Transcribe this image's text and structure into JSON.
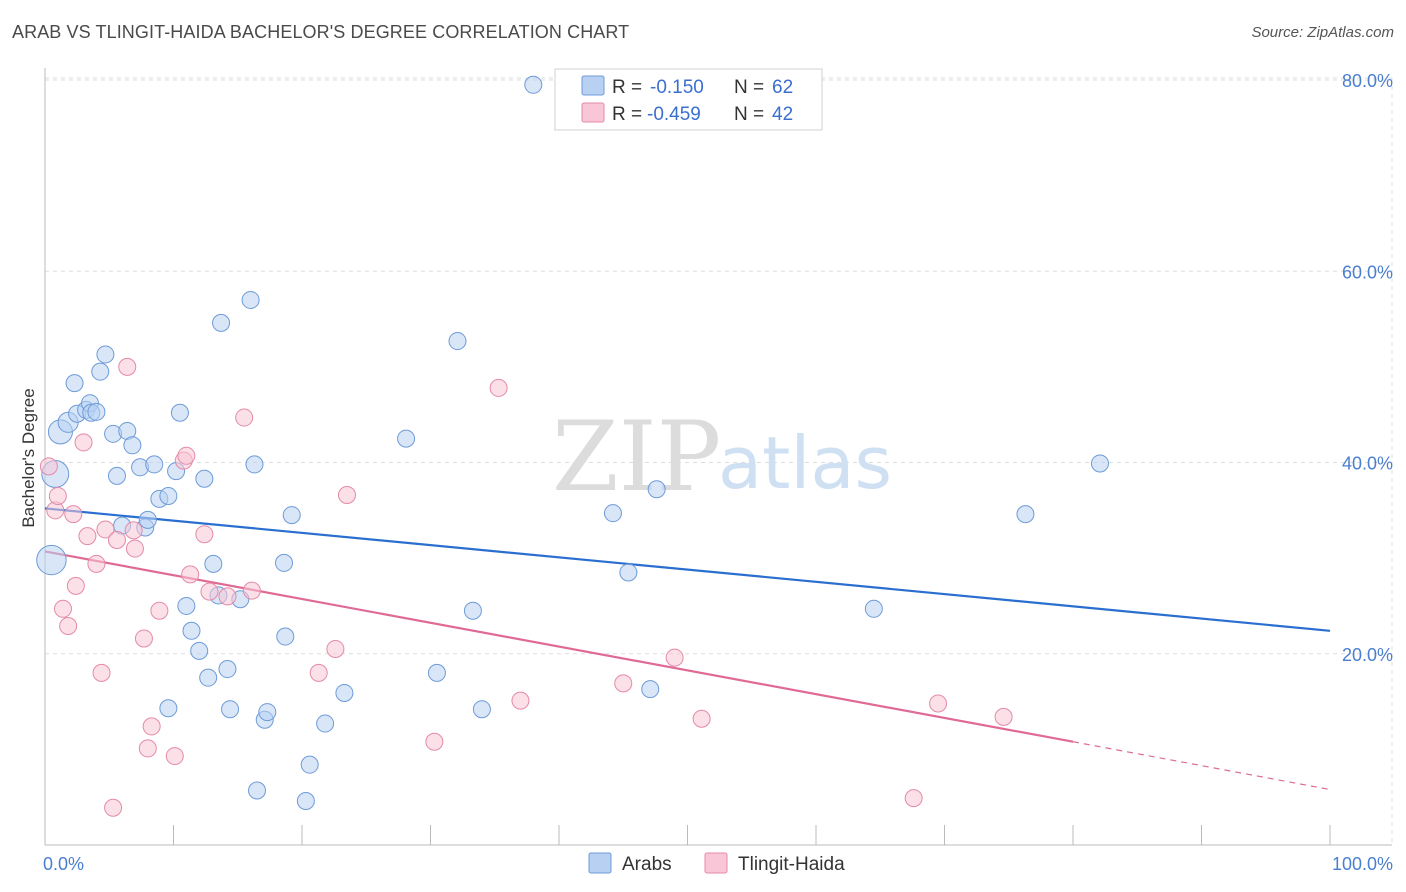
{
  "title": "ARAB VS TLINGIT-HAIDA BACHELOR'S DEGREE CORRELATION CHART",
  "source": "Source: ZipAtlas.com",
  "watermark": {
    "zip": "ZIP",
    "atlas": "atlas"
  },
  "colors": {
    "arabs_fill": "#b8d1f3",
    "arabs_stroke": "#6e9bd8",
    "arabs_line": "#2a6fd0",
    "tlingit_fill": "#f8c6d6",
    "tlingit_stroke": "#e58aa8",
    "tlingit_line": "#e06a96",
    "grid": "#dddddd",
    "tick_text": "#4a7fd0"
  },
  "legend": {
    "rows": [
      {
        "r_label": "R =",
        "r_value": "-0.150",
        "n_label": "N =",
        "n_value": "62"
      },
      {
        "r_label": "R =",
        "r_value": "-0.459",
        "n_label": "N =",
        "n_value": "42"
      }
    ]
  },
  "chart_data": {
    "type": "scatter",
    "title": "ARAB VS TLINGIT-HAIDA BACHELOR'S DEGREE CORRELATION CHART",
    "xlabel": "",
    "ylabel": "Bachelor's Degree",
    "xlim": [
      0,
      100
    ],
    "ylim": [
      0,
      80
    ],
    "x_tick_labels": [
      "0.0%",
      "100.0%"
    ],
    "y_ticks": [
      20,
      40,
      60,
      80
    ],
    "y_tick_labels": [
      "20.0%",
      "40.0%",
      "60.0%",
      "80.0%"
    ],
    "grid": true,
    "legend_position": "top-center",
    "series": [
      {
        "name": "Arabs",
        "color": "#b8d1f3",
        "trend": {
          "x": [
            0,
            100
          ],
          "y": [
            35.2,
            22.4
          ],
          "dashed_from": null
        },
        "points": [
          [
            0.5,
            29.8,
            3
          ],
          [
            0.8,
            38.8,
            2.5
          ],
          [
            1.2,
            43.2,
            2
          ],
          [
            1.8,
            44.2,
            1.4
          ],
          [
            2.3,
            48.3,
            1
          ],
          [
            2.5,
            45.1,
            1
          ],
          [
            3.2,
            45.5,
            1
          ],
          [
            3.5,
            46.2,
            1
          ],
          [
            3.6,
            45.2,
            1
          ],
          [
            4.3,
            49.5,
            1
          ],
          [
            4.7,
            51.3,
            1
          ],
          [
            5.3,
            43.0,
            1
          ],
          [
            5.6,
            38.6,
            1
          ],
          [
            6.0,
            33.4,
            1
          ],
          [
            6.4,
            43.3,
            1
          ],
          [
            6.8,
            41.8,
            1
          ],
          [
            7.4,
            39.5,
            1
          ],
          [
            7.8,
            33.2,
            1
          ],
          [
            8.0,
            34.0,
            1
          ],
          [
            8.5,
            39.8,
            1
          ],
          [
            8.9,
            36.2,
            1
          ],
          [
            9.6,
            36.5,
            1
          ],
          [
            10.2,
            39.1,
            1
          ],
          [
            10.5,
            45.2,
            1
          ],
          [
            11.0,
            25.0,
            1
          ],
          [
            11.4,
            22.4,
            1
          ],
          [
            12.0,
            20.3,
            1
          ],
          [
            12.4,
            38.3,
            1
          ],
          [
            12.7,
            17.5,
            1
          ],
          [
            13.1,
            29.4,
            1
          ],
          [
            13.5,
            26.1,
            1
          ],
          [
            13.7,
            54.6,
            1
          ],
          [
            14.2,
            18.4,
            1
          ],
          [
            14.4,
            14.2,
            1
          ],
          [
            15.2,
            25.7,
            1
          ],
          [
            16.0,
            57.0,
            1
          ],
          [
            16.3,
            39.8,
            1
          ],
          [
            16.5,
            5.7,
            1
          ],
          [
            17.1,
            13.1,
            1
          ],
          [
            17.3,
            13.9,
            1
          ],
          [
            18.6,
            29.5,
            1
          ],
          [
            18.7,
            21.8,
            1
          ],
          [
            19.2,
            34.5,
            1
          ],
          [
            20.3,
            4.6,
            1
          ],
          [
            20.6,
            8.4,
            1
          ],
          [
            21.8,
            12.7,
            1
          ],
          [
            23.3,
            15.9,
            1
          ],
          [
            28.1,
            42.5,
            1
          ],
          [
            30.5,
            18.0,
            1
          ],
          [
            32.1,
            52.7,
            1
          ],
          [
            33.3,
            24.5,
            1
          ],
          [
            34.0,
            14.2,
            1
          ],
          [
            38.0,
            79.5,
            1
          ],
          [
            44.2,
            34.7,
            1
          ],
          [
            45.4,
            28.5,
            1
          ],
          [
            47.1,
            16.3,
            1
          ],
          [
            47.6,
            37.2,
            1
          ],
          [
            9.6,
            14.3,
            1
          ],
          [
            76.3,
            34.6,
            1
          ],
          [
            64.5,
            24.7,
            1
          ],
          [
            82.1,
            39.9,
            1
          ],
          [
            4.0,
            45.3,
            1
          ]
        ]
      },
      {
        "name": "Tlingit-Haida",
        "color": "#f8c6d6",
        "trend": {
          "x": [
            0,
            80,
            100
          ],
          "y": [
            30.7,
            10.8,
            5.8
          ],
          "dashed_from": 80
        },
        "points": [
          [
            0.3,
            39.6,
            1
          ],
          [
            0.8,
            35.0,
            1
          ],
          [
            1.0,
            36.5,
            1
          ],
          [
            1.4,
            24.7,
            1
          ],
          [
            1.8,
            22.9,
            1
          ],
          [
            2.2,
            34.6,
            1
          ],
          [
            2.4,
            27.1,
            1
          ],
          [
            3.0,
            42.1,
            1
          ],
          [
            3.3,
            32.3,
            1
          ],
          [
            4.0,
            29.4,
            1
          ],
          [
            4.4,
            18.0,
            1
          ],
          [
            4.7,
            33.0,
            1
          ],
          [
            5.3,
            3.9,
            1
          ],
          [
            5.6,
            31.9,
            1
          ],
          [
            6.4,
            50.0,
            1
          ],
          [
            6.9,
            32.9,
            1
          ],
          [
            7.0,
            31.0,
            1
          ],
          [
            7.7,
            21.6,
            1
          ],
          [
            8.0,
            10.1,
            1
          ],
          [
            8.3,
            12.4,
            1
          ],
          [
            8.9,
            24.5,
            1
          ],
          [
            10.1,
            9.3,
            1
          ],
          [
            10.8,
            40.2,
            1
          ],
          [
            11.0,
            40.7,
            1
          ],
          [
            11.3,
            28.3,
            1
          ],
          [
            12.4,
            32.5,
            1
          ],
          [
            12.8,
            26.5,
            1
          ],
          [
            14.2,
            26.0,
            1
          ],
          [
            15.5,
            44.7,
            1
          ],
          [
            16.1,
            26.6,
            1
          ],
          [
            21.3,
            18.0,
            1
          ],
          [
            22.6,
            20.5,
            1
          ],
          [
            23.5,
            36.6,
            1
          ],
          [
            30.3,
            10.8,
            1
          ],
          [
            35.3,
            47.8,
            1
          ],
          [
            37.0,
            15.1,
            1
          ],
          [
            45.0,
            16.9,
            1
          ],
          [
            49.0,
            19.6,
            1
          ],
          [
            51.1,
            13.2,
            1
          ],
          [
            67.6,
            4.9,
            1
          ],
          [
            69.5,
            14.8,
            1
          ],
          [
            74.6,
            13.4,
            1
          ]
        ]
      }
    ]
  },
  "bottom_legend": [
    {
      "label": "Arabs"
    },
    {
      "label": "Tlingit-Haida"
    }
  ]
}
